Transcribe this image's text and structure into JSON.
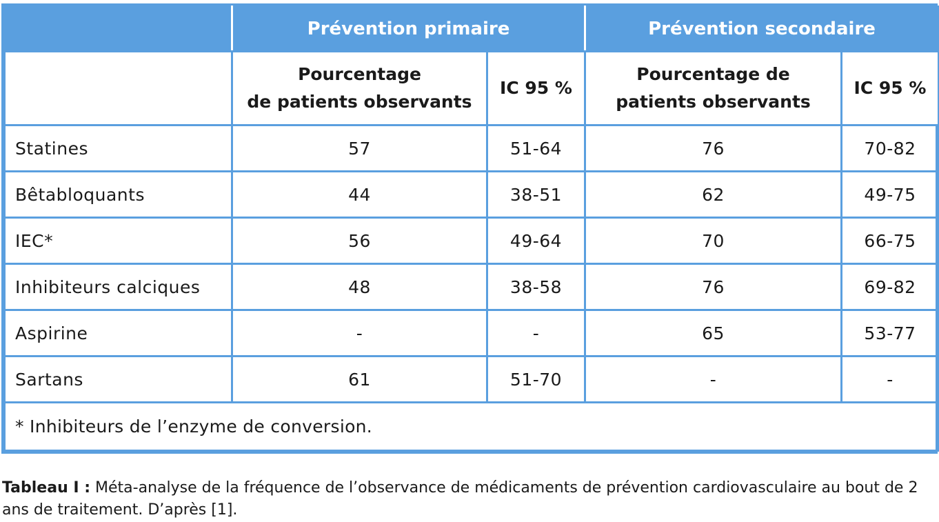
{
  "table": {
    "group_headers": [
      "Prévention primaire",
      "Prévention secondaire"
    ],
    "col_headers": {
      "primary_pct_line1": "Pourcentage",
      "primary_pct_line2": "de patients observants",
      "primary_ic": "IC 95 %",
      "secondary_pct_line1": "Pourcentage de",
      "secondary_pct_line2": "patients observants",
      "secondary_ic": "IC 95 %"
    },
    "rows": [
      {
        "label": "Statines",
        "p_pct": "57",
        "p_ic": "51-64",
        "s_pct": "76",
        "s_ic": "70-82"
      },
      {
        "label": "Bêtabloquants",
        "p_pct": "44",
        "p_ic": "38-51",
        "s_pct": "62",
        "s_ic": "49-75"
      },
      {
        "label": "IEC*",
        "p_pct": "56",
        "p_ic": "49-64",
        "s_pct": "70",
        "s_ic": "66-75"
      },
      {
        "label": "Inhibiteurs calciques",
        "p_pct": "48",
        "p_ic": "38-58",
        "s_pct": "76",
        "s_ic": "69-82"
      },
      {
        "label": "Aspirine",
        "p_pct": "-",
        "p_ic": "-",
        "s_pct": "65",
        "s_ic": "53-77"
      },
      {
        "label": "Sartans",
        "p_pct": "61",
        "p_ic": "51-70",
        "s_pct": "-",
        "s_ic": "-"
      }
    ],
    "footnote": "* Inhibiteurs de l’enzyme de conversion."
  },
  "caption": {
    "label": "Tableau I :",
    "text": " Méta-analyse de la fréquence de l’observance de médicaments de prévention cardiovasculaire au bout de 2 ans de traitement. D’après [1]."
  },
  "colors": {
    "accent": "#5a9fdf",
    "header_text": "#ffffff"
  }
}
